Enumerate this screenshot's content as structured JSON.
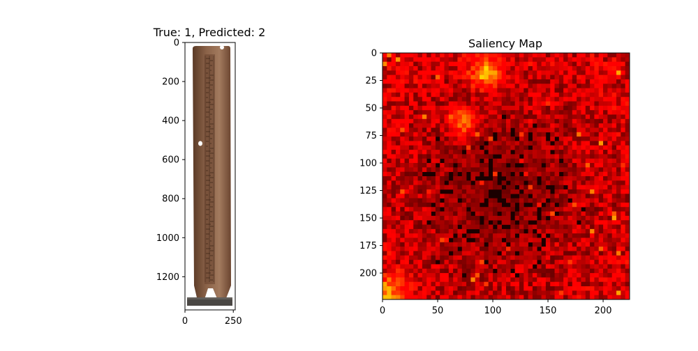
{
  "figure": {
    "left_title": "True: 1, Predicted: 2",
    "right_title": "Saliency Map"
  },
  "chart_data": [
    {
      "type": "image",
      "title": "True: 1, Predicted: 2",
      "content": "photo of a tall carved wooden tablet on a stand",
      "xlim": [
        0,
        260
      ],
      "ylim": [
        1370,
        0
      ],
      "x_ticks": [
        0,
        250
      ],
      "y_ticks": [
        0,
        200,
        400,
        600,
        800,
        1000,
        1200
      ]
    },
    {
      "type": "heatmap",
      "title": "Saliency Map",
      "colormap": "hot",
      "xlim": [
        0,
        224
      ],
      "ylim": [
        224,
        0
      ],
      "x_ticks": [
        0,
        50,
        100,
        150,
        200
      ],
      "y_ticks": [
        0,
        25,
        50,
        75,
        100,
        125,
        150,
        175,
        200
      ]
    }
  ],
  "colors": {
    "wood_dark": "#5a3a26",
    "wood_mid": "#8a6248",
    "wood_light": "#a27a5e",
    "stand": "#4a4744",
    "saliency_bg": "#1a0000",
    "saliency_hot": "#ff3a00",
    "saliency_peak": "#ffd040"
  }
}
